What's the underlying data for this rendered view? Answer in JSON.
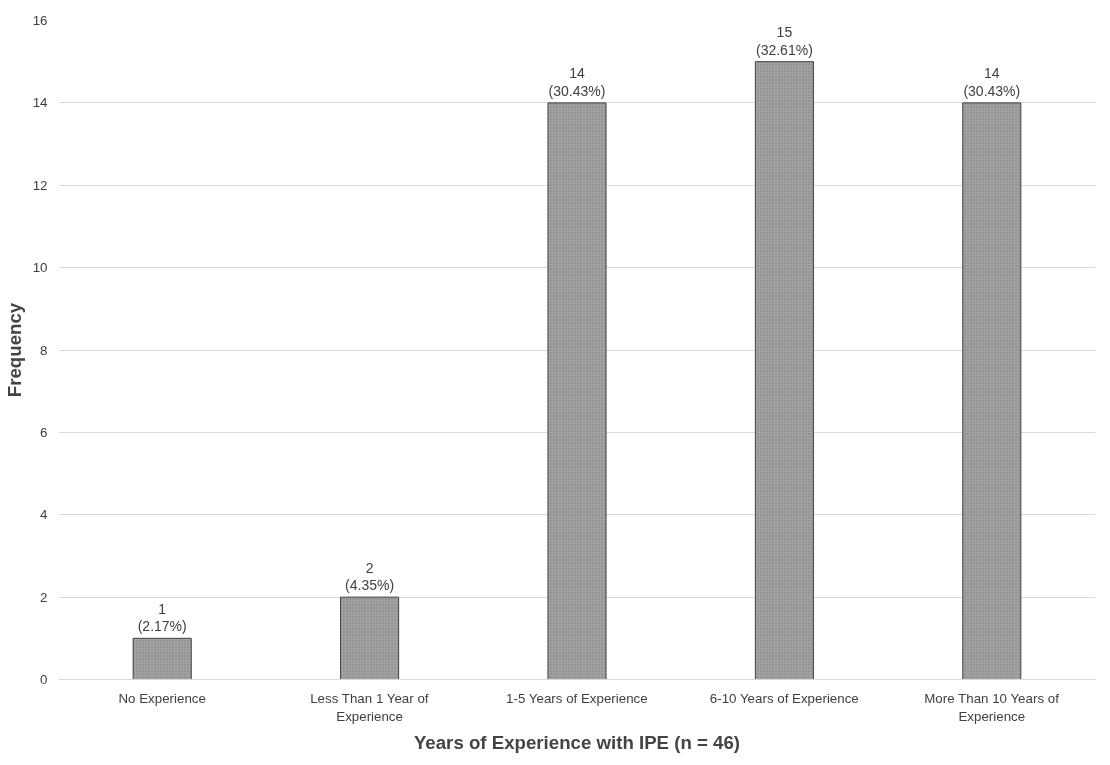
{
  "chart_data": {
    "type": "bar",
    "xlabel": "Years of Experience with IPE (n = 46)",
    "ylabel": "Frequency",
    "categories": [
      "No Experience",
      "Less Than 1 Year of Experience",
      "1-5 Years of Experience",
      "6-10 Years of Experience",
      "More Than 10 Years of Experience"
    ],
    "values": [
      1,
      2,
      14,
      15,
      14
    ],
    "value_labels": [
      "1\n(2.17%)",
      "2\n(4.35%)",
      "14\n(30.43%)",
      "15\n(32.61%)",
      "14\n(30.43%)"
    ],
    "color": "#a3a3a3",
    "ylim": [
      0,
      16
    ],
    "yticks": [
      0,
      2,
      4,
      6,
      8,
      10,
      12,
      14,
      16
    ],
    "grid": "y"
  }
}
